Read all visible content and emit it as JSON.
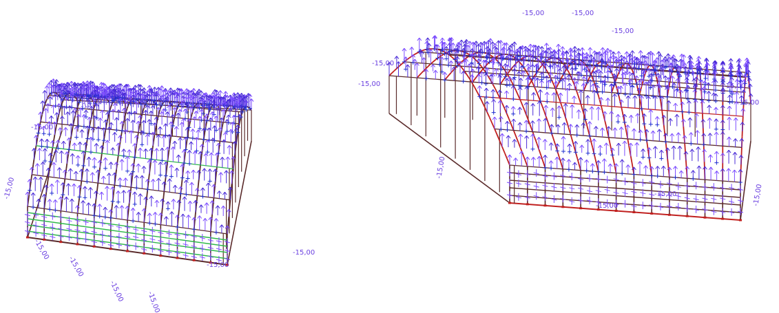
{
  "colors": {
    "load_arrows": "#7b4bff",
    "load_arrows_dark": "#4a2bd8",
    "frame": "#5a2a2a",
    "frame_red": "#c0201f",
    "purlin_green": "#2fb84a",
    "node_cross": "#2030d0",
    "label": "#6a3fe0"
  },
  "load_value_label": "-15,00",
  "models": [
    {
      "name": "model-left",
      "view": "isometric-left",
      "highlight": "green-purlins"
    },
    {
      "name": "model-right",
      "view": "isometric-right",
      "highlight": "red-frames"
    }
  ],
  "labels_left": [
    "-15,00",
    "-15,00",
    "-15,00",
    "-15,00",
    "-15,00",
    "-15,00",
    "-15,00",
    "-15,00",
    "-15,00"
  ],
  "labels_right": [
    "-15,00",
    "-15,00",
    "-15,00",
    "-15,00",
    "-15,00",
    "-15,00",
    "-15,00",
    "-15,00",
    "-15,00",
    "-15,00",
    "-15,00"
  ]
}
